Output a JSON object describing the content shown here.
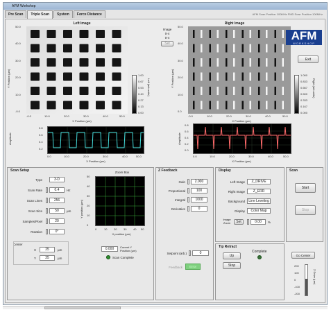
{
  "window": {
    "title": "AFM Workshop"
  },
  "tabs": [
    {
      "label": "Pre Scan",
      "active": false
    },
    {
      "label": "Triple Scan",
      "active": true
    },
    {
      "label": "System",
      "active": false
    },
    {
      "label": "Force Distance",
      "active": false
    }
  ],
  "tabmeta": "AFM Scan Position    100MHz   FMD Scan Position   100MHz",
  "left_image": {
    "title": "Left Image",
    "ylabel": "Y Position (µm)",
    "xlabel": "X Position (µm)",
    "xticks": [
      "-0.0",
      "10.0",
      "20.0",
      "30.0",
      "40.0",
      "50.0"
    ],
    "yticks": [
      "50.0",
      "40.0",
      "30.0",
      "20.0",
      "10.0",
      "-0.0"
    ],
    "colorbar": [
      "1.00",
      "0.67",
      "0.53",
      "0.40",
      "0.27",
      "0.13",
      "0.00"
    ],
    "colorbar_label": "Left (arb.units)"
  },
  "right_image": {
    "title": "Right Image",
    "ylabel": "Y Position (µm)",
    "xlabel": "X Position (µm)",
    "xticks": [
      "-0.0",
      "10.0",
      "20.0",
      "30.0",
      "40.0",
      "50.0"
    ],
    "yticks": [
      "50.0",
      "40.0",
      "30.0",
      "20.0",
      "10.0",
      "0.0"
    ],
    "colorbar": [
      "1.000",
      "0.833",
      "0.667",
      "0.500",
      "0.333",
      "0.167",
      "0.000"
    ],
    "colorbar_label": "Right (arb.units)"
  },
  "image_index": {
    "label": "Image",
    "value1": "0-4",
    "value2": "0-4",
    "button": "Set"
  },
  "logo": {
    "text": "AFM",
    "sub": "WORKSHOP"
  },
  "exit_button": "Exit",
  "left_profile": {
    "ylabel": "Amplitude",
    "xlabel": "X Position (µm)",
    "xticks": [
      "0.0",
      "10.0",
      "20.0",
      "30.0",
      "40.0",
      "50.0"
    ],
    "yticks": [
      "0.8",
      "0.6",
      "0.4",
      "0.2"
    ]
  },
  "right_profile": {
    "ylabel": "Amplitude",
    "xlabel": "X Position (µm)",
    "xticks": [
      "0.0",
      "10.0",
      "20.0",
      "30.0",
      "40.0",
      "50.0"
    ],
    "yticks": [
      "0.8",
      "0.6",
      "0.4",
      "0.2",
      "0.0"
    ]
  },
  "scan_setup": {
    "title": "Scan Setup",
    "type_label": "Type",
    "type_value": "3-D",
    "scan_rate_label": "Scan Rate",
    "scan_rate_value": "0.4",
    "scan_rate_unit": "Hz",
    "scan_lines_label": "Scan Lines",
    "scan_lines_value": "256",
    "scan_size_label": "Scan Size",
    "scan_size_value": "50",
    "scan_size_unit": "µm",
    "samples_label": "Samples/Pixel",
    "samples_value": "20",
    "rotation_label": "Rotation",
    "rotation_value": "0°",
    "center_label": "Center",
    "center_x_label": "X",
    "center_x_value": "25",
    "center_x_unit": "µm",
    "center_y_label": "Y",
    "center_y_value": "25",
    "center_y_unit": "µm",
    "zoom_title": "Zoom Box",
    "zoom_ylabel": "Y position (µm)",
    "zoom_xlabel": "X position (µm)",
    "zoom_xticks": [
      "0",
      "10",
      "20",
      "30",
      "40",
      "50"
    ],
    "zoom_yticks": [
      "50",
      "40",
      "30",
      "20",
      "10",
      "0"
    ],
    "current_y_value": "0.000",
    "current_y_label": "Current Y Position (µm)",
    "scan_complete_label": "Scan Complete"
  },
  "z_feedback": {
    "title": "Z Feedback",
    "gain_label": "Gain",
    "gain_value": "2.000",
    "proportional_label": "Proportional",
    "proportional_value": "100",
    "integral_label": "Integral",
    "integral_value": "1000",
    "derivative_label": "Derivative",
    "derivative_value": "0",
    "setpoint_label": "Setpoint (arb.)",
    "setpoint_value": "0",
    "feedback_label": "Feedback",
    "feedback_button": "Error"
  },
  "display": {
    "title": "Display",
    "left_image_label": "Left Image",
    "left_image_value": "Z_DRIVE",
    "right_image_label": "Right Image",
    "right_image_value": "Z_ERR",
    "background_label": "Background",
    "background_value": "Line Leveling",
    "display_label": "Display",
    "display_value": "Color Map",
    "image_zoom_label": "Image Zoom",
    "image_zoom_button": "Set",
    "image_zoom_value": "0.00",
    "image_zoom_unit": "%"
  },
  "scan_controls": {
    "title": "Scan",
    "start_button": "Start",
    "stop_button": "Stop"
  },
  "tip_retract": {
    "title": "Tip Retract",
    "up_button": "Up",
    "stop_button": "Stop",
    "complete_label": "Complete"
  },
  "z_center": {
    "button": "Go Center",
    "ticks": [
      "200",
      "100",
      "0",
      "-100",
      "-200"
    ],
    "label": "Z Drive (µm)"
  }
}
